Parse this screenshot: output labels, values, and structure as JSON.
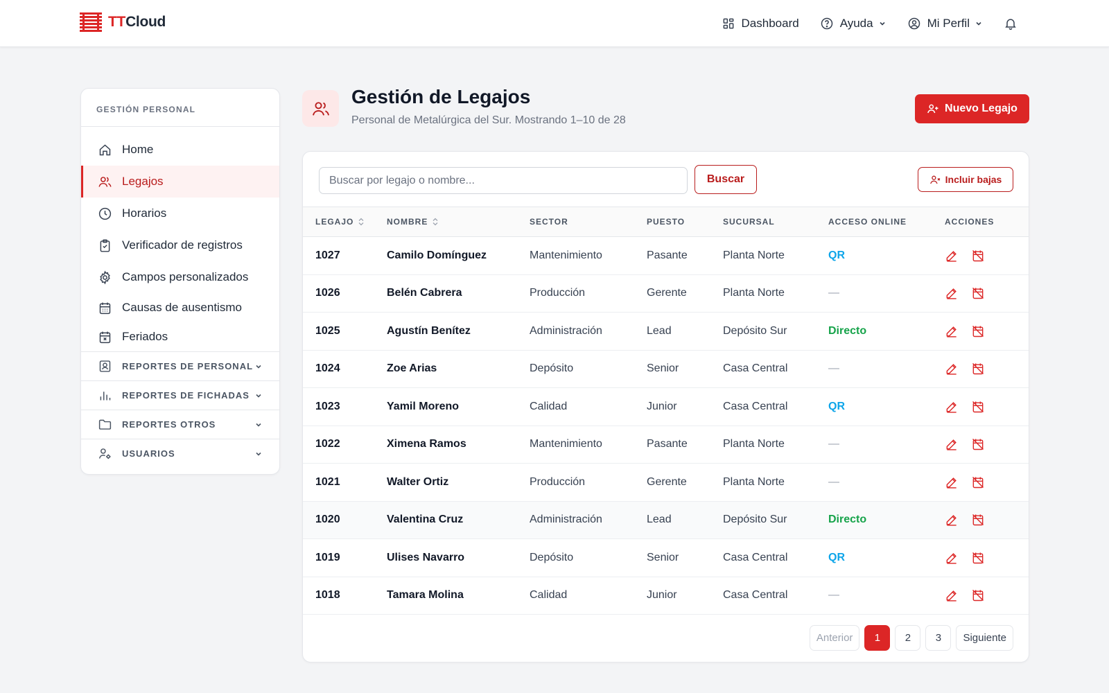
{
  "brand": {
    "prefix": "TT",
    "suffix": "Cloud"
  },
  "topnav": {
    "dashboard": "Dashboard",
    "help": "Ayuda",
    "profile": "Mi Perfil"
  },
  "sidebar": {
    "header": "GESTIÓN PERSONAL",
    "items": [
      {
        "label": "Home",
        "icon": "home-icon"
      },
      {
        "label": "Legajos",
        "icon": "users-icon",
        "active": true
      },
      {
        "label": "Horarios",
        "icon": "clock-icon"
      },
      {
        "label": "Verificador de registros",
        "icon": "clipboard-check-icon"
      },
      {
        "label": "Campos personalizados",
        "icon": "gear-icon"
      },
      {
        "label": "Causas de ausentismo",
        "icon": "calendar-icon"
      },
      {
        "label": "Feriados",
        "icon": "calendar-x-icon"
      }
    ],
    "groups": [
      {
        "label": "REPORTES DE PERSONAL",
        "icon": "id-badge-icon"
      },
      {
        "label": "REPORTES DE FICHADAS",
        "icon": "bar-chart-icon"
      },
      {
        "label": "REPORTES OTROS",
        "icon": "folder-icon"
      },
      {
        "label": "USUARIOS",
        "icon": "user-settings-icon"
      }
    ]
  },
  "page": {
    "title": "Gestión de Legajos",
    "subtitle": "Personal de Metalúrgica del Sur. Mostrando 1–10 de 28",
    "new_button": "Nuevo Legajo"
  },
  "search": {
    "placeholder": "Buscar por legajo o nombre...",
    "value": "",
    "button": "Buscar",
    "include_button": "Incluir bajas"
  },
  "table": {
    "columns": [
      "LEGAJO",
      "NOMBRE",
      "SECTOR",
      "PUESTO",
      "SUCURSAL",
      "ACCESO ONLINE",
      "ACCIONES"
    ],
    "rows": [
      {
        "legajo": "1027",
        "nombre": "Camilo Domínguez",
        "sector": "Mantenimiento",
        "puesto": "Pasante",
        "sucursal": "Planta Norte",
        "acceso": "QR"
      },
      {
        "legajo": "1026",
        "nombre": "Belén Cabrera",
        "sector": "Producción",
        "puesto": "Gerente",
        "sucursal": "Planta Norte",
        "acceso": "—"
      },
      {
        "legajo": "1025",
        "nombre": "Agustín Benítez",
        "sector": "Administración",
        "puesto": "Lead",
        "sucursal": "Depósito Sur",
        "acceso": "Directo"
      },
      {
        "legajo": "1024",
        "nombre": "Zoe Arias",
        "sector": "Depósito",
        "puesto": "Senior",
        "sucursal": "Casa Central",
        "acceso": "—"
      },
      {
        "legajo": "1023",
        "nombre": "Yamil Moreno",
        "sector": "Calidad",
        "puesto": "Junior",
        "sucursal": "Casa Central",
        "acceso": "QR"
      },
      {
        "legajo": "1022",
        "nombre": "Ximena Ramos",
        "sector": "Mantenimiento",
        "puesto": "Pasante",
        "sucursal": "Planta Norte",
        "acceso": "—"
      },
      {
        "legajo": "1021",
        "nombre": "Walter Ortiz",
        "sector": "Producción",
        "puesto": "Gerente",
        "sucursal": "Planta Norte",
        "acceso": "—"
      },
      {
        "legajo": "1020",
        "nombre": "Valentina Cruz",
        "sector": "Administración",
        "puesto": "Lead",
        "sucursal": "Depósito Sur",
        "acceso": "Directo"
      },
      {
        "legajo": "1019",
        "nombre": "Ulises Navarro",
        "sector": "Depósito",
        "puesto": "Senior",
        "sucursal": "Casa Central",
        "acceso": "QR"
      },
      {
        "legajo": "1018",
        "nombre": "Tamara Molina",
        "sector": "Calidad",
        "puesto": "Junior",
        "sucursal": "Casa Central",
        "acceso": "—"
      }
    ]
  },
  "pagination": {
    "prev": "Anterior",
    "pages": [
      "1",
      "2",
      "3"
    ],
    "current": "1",
    "next": "Siguiente"
  },
  "colors": {
    "accent": "#dc2626",
    "qr": "#0ea5e9",
    "directo": "#16a34a"
  }
}
